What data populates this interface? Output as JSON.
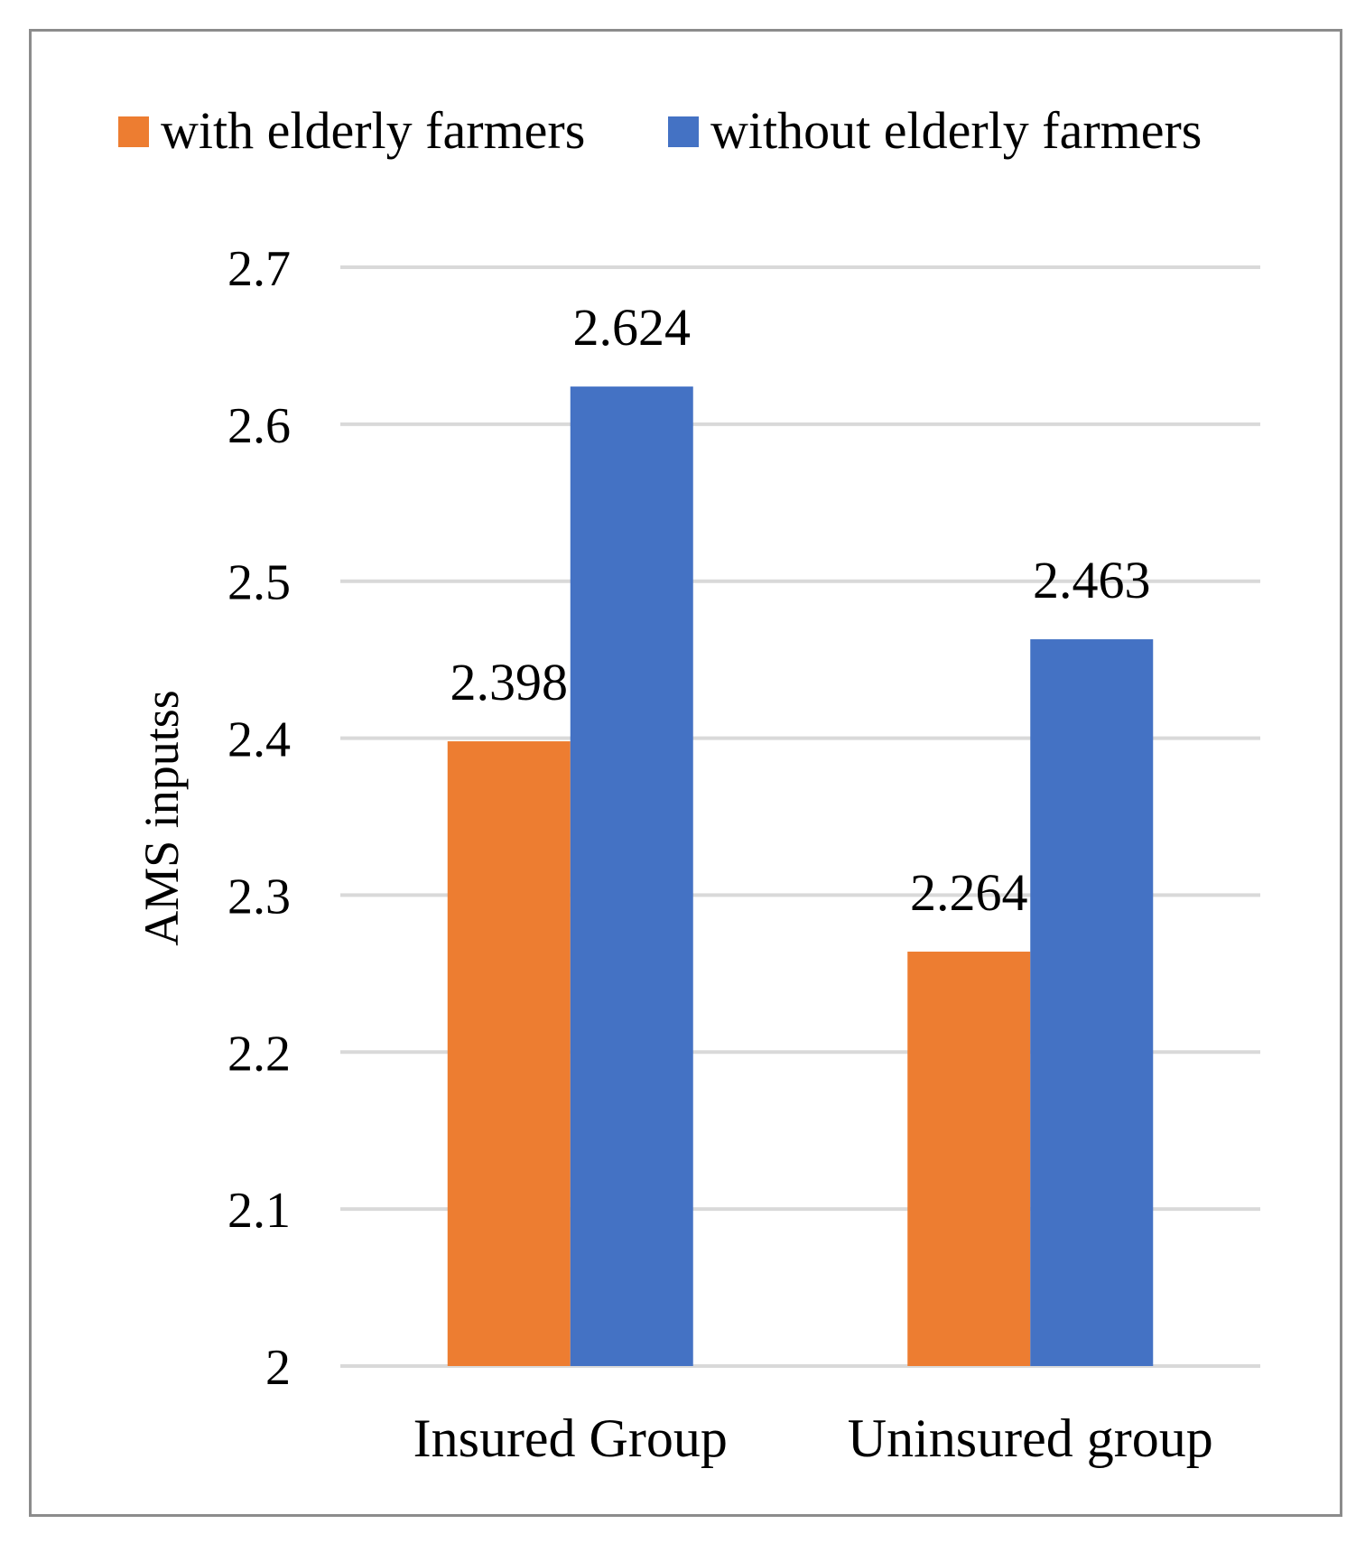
{
  "chart_data": {
    "type": "bar",
    "title": "",
    "xlabel": "",
    "ylabel": "AMS  inputss",
    "ylim": [
      2,
      2.7
    ],
    "yticks": [
      "2",
      "2.1",
      "2.2",
      "2.3",
      "2.4",
      "2.5",
      "2.6",
      "2.7"
    ],
    "grid": true,
    "legend_position": "top",
    "categories": [
      "Insured Group",
      "Uninsured group"
    ],
    "series": [
      {
        "name": "with elderly farmers",
        "color": "#ED7D31",
        "values": [
          2.398,
          2.264
        ],
        "labels": [
          "2.398",
          "2.264"
        ]
      },
      {
        "name": "without elderly farmers",
        "color": "#4472C4",
        "values": [
          2.624,
          2.463
        ],
        "labels": [
          "2.624",
          "2.463"
        ]
      }
    ]
  }
}
